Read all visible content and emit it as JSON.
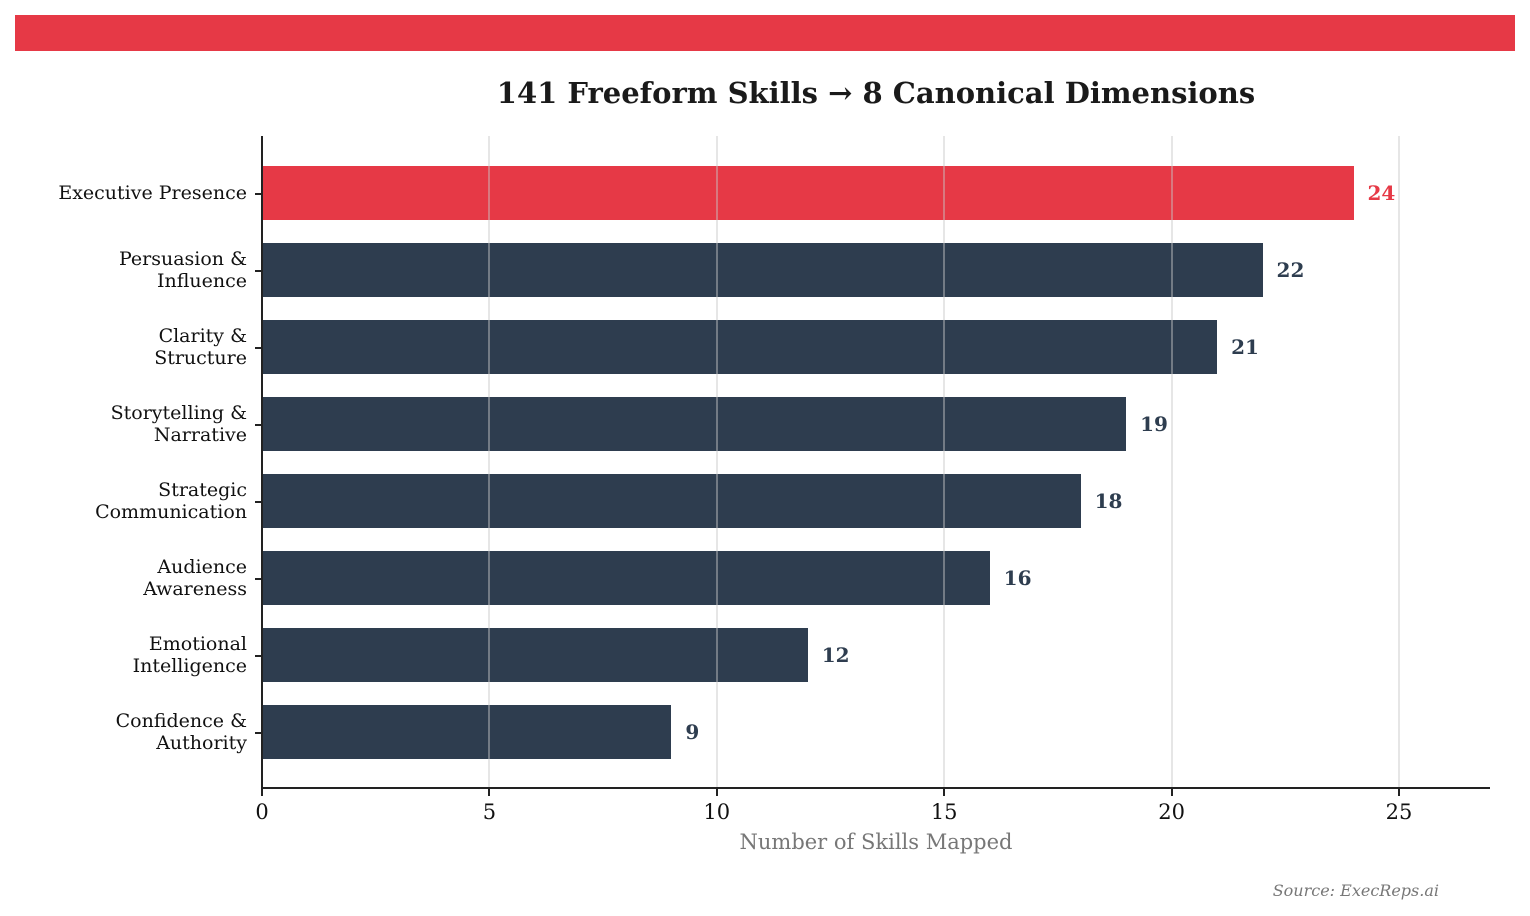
{
  "banner": {
    "color": "#e63946"
  },
  "title": "141 Freeform Skills → 8 Canonical Dimensions",
  "x_axis": {
    "label": "Number of Skills Mapped",
    "ticks": [
      "0",
      "5",
      "10",
      "15",
      "20",
      "25"
    ]
  },
  "source": "Source: ExecReps.ai",
  "colors": {
    "highlight": "#e63946",
    "default": "#2e3d4f"
  },
  "bars": [
    {
      "label": "Executive Presence",
      "value": 24,
      "value_text": "24",
      "highlight": true
    },
    {
      "label": "Persuasion &\nInfluence",
      "value": 22,
      "value_text": "22",
      "highlight": false
    },
    {
      "label": "Clarity &\nStructure",
      "value": 21,
      "value_text": "21",
      "highlight": false
    },
    {
      "label": "Storytelling &\nNarrative",
      "value": 19,
      "value_text": "19",
      "highlight": false
    },
    {
      "label": "Strategic\nCommunication",
      "value": 18,
      "value_text": "18",
      "highlight": false
    },
    {
      "label": "Audience\nAwareness",
      "value": 16,
      "value_text": "16",
      "highlight": false
    },
    {
      "label": "Emotional\nIntelligence",
      "value": 12,
      "value_text": "12",
      "highlight": false
    },
    {
      "label": "Confidence &\nAuthority",
      "value": 9,
      "value_text": "9",
      "highlight": false
    }
  ],
  "chart_data": {
    "type": "bar",
    "orientation": "horizontal",
    "title": "141 Freeform Skills → 8 Canonical Dimensions",
    "categories": [
      "Executive Presence",
      "Persuasion & Influence",
      "Clarity & Structure",
      "Storytelling & Narrative",
      "Strategic Communication",
      "Audience Awareness",
      "Emotional Intelligence",
      "Confidence & Authority"
    ],
    "values": [
      24,
      22,
      21,
      19,
      18,
      16,
      12,
      9
    ],
    "xlabel": "Number of Skills Mapped",
    "ylabel": "",
    "xlim": [
      0,
      27
    ],
    "xticks": [
      0,
      5,
      10,
      15,
      20,
      25
    ],
    "grid": "vertical",
    "legend": null,
    "highlighted_category": "Executive Presence",
    "data_labels": true,
    "annotations": [
      "Source: ExecReps.ai"
    ]
  }
}
